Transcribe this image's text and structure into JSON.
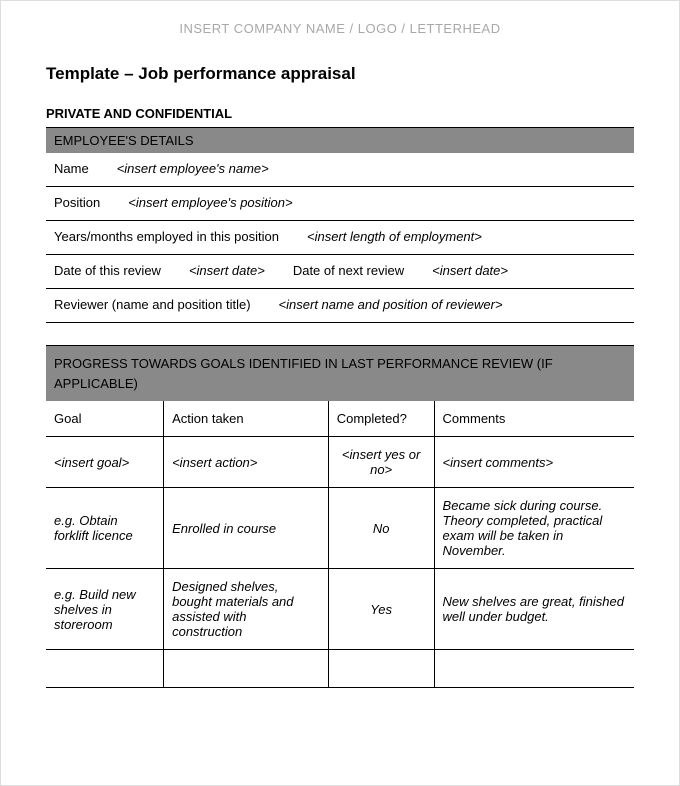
{
  "letterhead": "INSERT COMPANY NAME / LOGO / LETTERHEAD",
  "title": "Template – Job performance appraisal",
  "confidential": "PRIVATE AND CONFIDENTIAL",
  "employee_details": {
    "header": "EMPLOYEE'S DETAILS",
    "rows": [
      {
        "label": "Name",
        "value": "<insert employee's name>"
      },
      {
        "label": "Position",
        "value": "<insert employee's position>"
      },
      {
        "label": "Years/months employed in this position",
        "value": "<insert length of employment>"
      },
      {
        "label": "Date of this review",
        "value": "<insert date>",
        "label2": "Date of next review",
        "value2": "<insert date>"
      },
      {
        "label": "Reviewer (name and position title)",
        "value": "<insert name and position of reviewer>"
      }
    ]
  },
  "goals_section": {
    "header": "PROGRESS TOWARDS GOALS IDENTIFIED IN LAST PERFORMANCE REVIEW (IF APPLICABLE)",
    "columns": [
      "Goal",
      "Action taken",
      "Completed?",
      "Comments"
    ],
    "rows": [
      {
        "goal": "<insert goal>",
        "action": "<insert action>",
        "completed": "<insert yes or no>",
        "comments": "<insert comments>",
        "italic": true
      },
      {
        "goal": "e.g. Obtain forklift licence",
        "action": "Enrolled in course",
        "completed": "No",
        "comments": "Became sick during course. Theory completed, practical exam will be taken in November.",
        "italic": true
      },
      {
        "goal": "e.g. Build new shelves in storeroom",
        "action": "Designed shelves, bought materials and assisted with construction",
        "completed": "Yes",
        "comments": "New shelves are great, finished well under budget.",
        "italic": true
      },
      {
        "goal": "",
        "action": "",
        "completed": "",
        "comments": "",
        "italic": false
      }
    ]
  },
  "colors": {
    "section_bg": "#898989",
    "letterhead_text": "#a8a8a8",
    "border": "#000000",
    "page_bg": "#ffffff"
  }
}
